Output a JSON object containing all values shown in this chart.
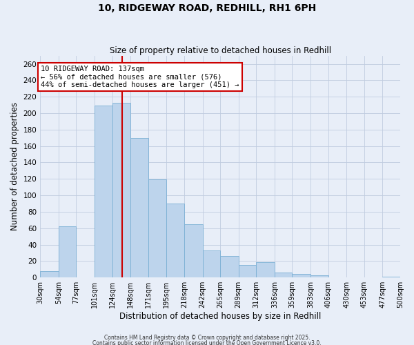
{
  "title": "10, RIDGEWAY ROAD, REDHILL, RH1 6PH",
  "subtitle": "Size of property relative to detached houses in Redhill",
  "xlabel": "Distribution of detached houses by size in Redhill",
  "ylabel": "Number of detached properties",
  "bar_values": [
    8,
    62,
    0,
    209,
    213,
    170,
    119,
    90,
    65,
    33,
    26,
    15,
    19,
    6,
    4,
    3,
    0,
    0,
    0,
    1
  ],
  "bin_edges": [
    30,
    54,
    77,
    101,
    124,
    148,
    171,
    195,
    218,
    242,
    265,
    289,
    312,
    336,
    359,
    383,
    406,
    430,
    453,
    477,
    500
  ],
  "tick_labels": [
    "30sqm",
    "54sqm",
    "77sqm",
    "101sqm",
    "124sqm",
    "148sqm",
    "171sqm",
    "195sqm",
    "218sqm",
    "242sqm",
    "265sqm",
    "289sqm",
    "312sqm",
    "336sqm",
    "359sqm",
    "383sqm",
    "406sqm",
    "430sqm",
    "453sqm",
    "477sqm",
    "500sqm"
  ],
  "bar_color": "#bdd4ec",
  "bar_edge_color": "#7aafd4",
  "vline_x": 137,
  "vline_color": "#cc0000",
  "ylim": [
    0,
    270
  ],
  "yticks": [
    0,
    20,
    40,
    60,
    80,
    100,
    120,
    140,
    160,
    180,
    200,
    220,
    240,
    260
  ],
  "annotation_title": "10 RIDGEWAY ROAD: 137sqm",
  "annotation_line1": "← 56% of detached houses are smaller (576)",
  "annotation_line2": "44% of semi-detached houses are larger (451) →",
  "annotation_box_color": "#ffffff",
  "annotation_box_edge": "#cc0000",
  "footer1": "Contains HM Land Registry data © Crown copyright and database right 2025.",
  "footer2": "Contains public sector information licensed under the Open Government Licence v3.0.",
  "bg_color": "#e8eef8",
  "grid_color": "#c0cce0"
}
